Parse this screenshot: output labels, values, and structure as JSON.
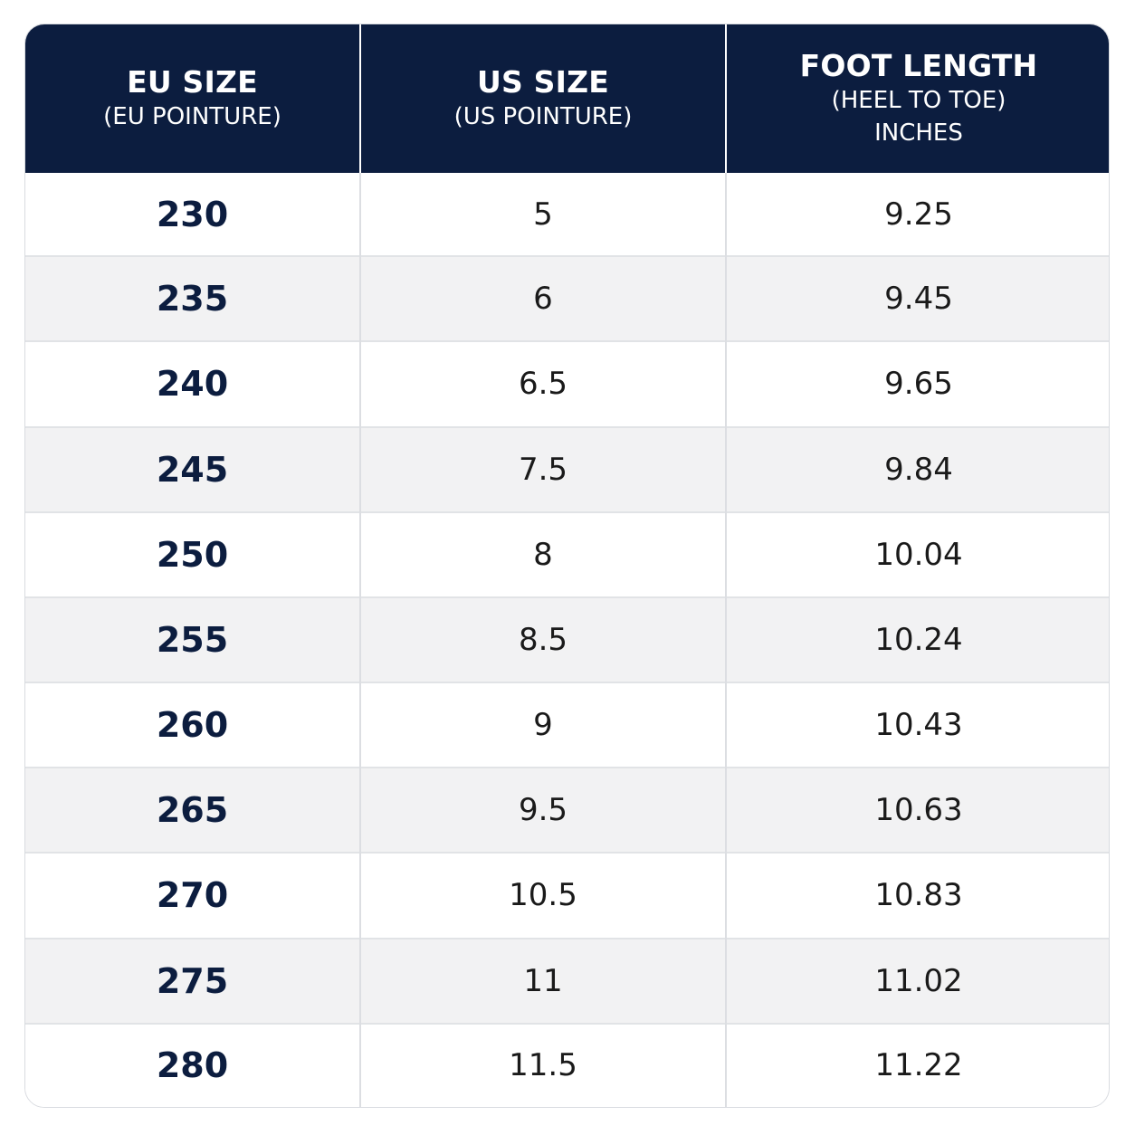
{
  "header": {
    "eu": {
      "title": "EU SIZE",
      "sub": "(EU POINTURE)"
    },
    "us": {
      "title": "US SIZE",
      "sub": "(US POINTURE)"
    },
    "foot": {
      "title": "FOOT LENGTH",
      "sub": "(HEEL TO TOE)",
      "unit": "INCHES"
    }
  },
  "rows": [
    {
      "eu": "230",
      "us": "5",
      "inches": "9.25"
    },
    {
      "eu": "235",
      "us": "6",
      "inches": "9.45"
    },
    {
      "eu": "240",
      "us": "6.5",
      "inches": "9.65"
    },
    {
      "eu": "245",
      "us": "7.5",
      "inches": "9.84"
    },
    {
      "eu": "250",
      "us": "8",
      "inches": "10.04"
    },
    {
      "eu": "255",
      "us": "8.5",
      "inches": "10.24"
    },
    {
      "eu": "260",
      "us": "9",
      "inches": "10.43"
    },
    {
      "eu": "265",
      "us": "9.5",
      "inches": "10.63"
    },
    {
      "eu": "270",
      "us": "10.5",
      "inches": "10.83"
    },
    {
      "eu": "275",
      "us": "11",
      "inches": "11.02"
    },
    {
      "eu": "280",
      "us": "11.5",
      "inches": "11.22"
    }
  ],
  "colors": {
    "header_bg": "#0c1d3f",
    "eu_text": "#0c1d3f",
    "stripe": "#f2f2f3"
  }
}
